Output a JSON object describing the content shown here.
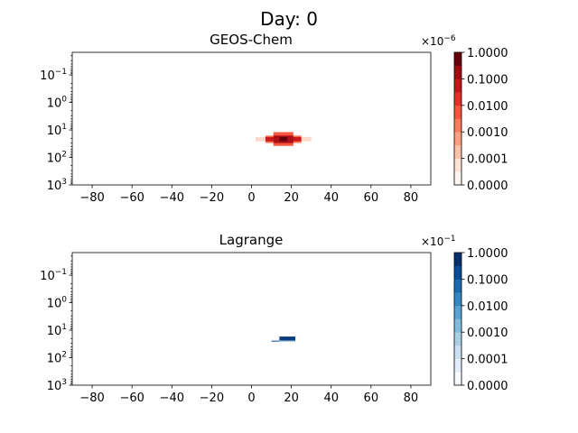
{
  "figure": {
    "suptitle": "Day: 0"
  },
  "chart_data": [
    {
      "type": "heatmap",
      "title": "GEOS-Chem",
      "x_ticks": [
        "−80",
        "−60",
        "−40",
        "−20",
        "0",
        "20",
        "40",
        "60",
        "80"
      ],
      "x_tick_values": [
        -80,
        -60,
        -40,
        -20,
        0,
        20,
        40,
        60,
        80
      ],
      "xlim": [
        -90,
        90
      ],
      "y_scale": "log",
      "y_inverted": true,
      "ylim": [
        0.015,
        1000
      ],
      "y_ticks": [
        {
          "value": 0.1,
          "base": "10",
          "exp": "−1"
        },
        {
          "value": 1,
          "base": "10",
          "exp": "0"
        },
        {
          "value": 10,
          "base": "10",
          "exp": "1"
        },
        {
          "value": 100,
          "base": "10",
          "exp": "2"
        },
        {
          "value": 1000,
          "base": "10",
          "exp": "3"
        }
      ],
      "colormap": "Reds",
      "colorbar": {
        "labels": [
          "1.0000",
          "0.1000",
          "0.0100",
          "0.0010",
          "0.0001",
          "0.0000"
        ],
        "offset_base": "×10",
        "offset_exp": "−6",
        "levels": 10
      },
      "cells": [
        {
          "x0": 2,
          "x1": 7,
          "y0": 18,
          "y1": 26,
          "level": 0.15
        },
        {
          "x0": 25,
          "x1": 30,
          "y0": 18,
          "y1": 26,
          "level": 0.15
        },
        {
          "x0": 7,
          "x1": 11,
          "y0": 16,
          "y1": 30,
          "level": 0.45
        },
        {
          "x0": 21,
          "x1": 25,
          "y0": 16,
          "y1": 30,
          "level": 0.45
        },
        {
          "x0": 11,
          "x1": 21,
          "y0": 12,
          "y1": 38,
          "level": 0.55
        },
        {
          "x0": 7,
          "x1": 25,
          "y0": 18,
          "y1": 26,
          "level": 0.75
        },
        {
          "x0": 11,
          "x1": 21,
          "y0": 16,
          "y1": 30,
          "level": 0.85
        },
        {
          "x0": 14,
          "x1": 18,
          "y0": 18,
          "y1": 26,
          "level": 1.0
        }
      ]
    },
    {
      "type": "heatmap",
      "title": "Lagrange",
      "x_ticks": [
        "−80",
        "−60",
        "−40",
        "−20",
        "0",
        "20",
        "40",
        "60",
        "80"
      ],
      "x_tick_values": [
        -80,
        -60,
        -40,
        -20,
        0,
        20,
        40,
        60,
        80
      ],
      "xlim": [
        -90,
        90
      ],
      "y_scale": "log",
      "y_inverted": true,
      "ylim": [
        0.015,
        1000
      ],
      "y_ticks": [
        {
          "value": 0.1,
          "base": "10",
          "exp": "−1"
        },
        {
          "value": 1,
          "base": "10",
          "exp": "0"
        },
        {
          "value": 10,
          "base": "10",
          "exp": "1"
        },
        {
          "value": 100,
          "base": "10",
          "exp": "2"
        },
        {
          "value": 1000,
          "base": "10",
          "exp": "3"
        }
      ],
      "colormap": "Blues",
      "colorbar": {
        "labels": [
          "1.0000",
          "0.1000",
          "0.0100",
          "0.0010",
          "0.0001",
          "0.0000"
        ],
        "offset_base": "×10",
        "offset_exp": "−1",
        "levels": 10
      },
      "cells": [
        {
          "x0": 10,
          "x1": 14,
          "y0": 24,
          "y1": 26,
          "level": 0.85
        },
        {
          "x0": 14,
          "x1": 22,
          "y0": 17,
          "y1": 24,
          "level": 0.95
        },
        {
          "x0": 14,
          "x1": 22,
          "y0": 24,
          "y1": 26,
          "level": 0.4
        }
      ]
    }
  ]
}
